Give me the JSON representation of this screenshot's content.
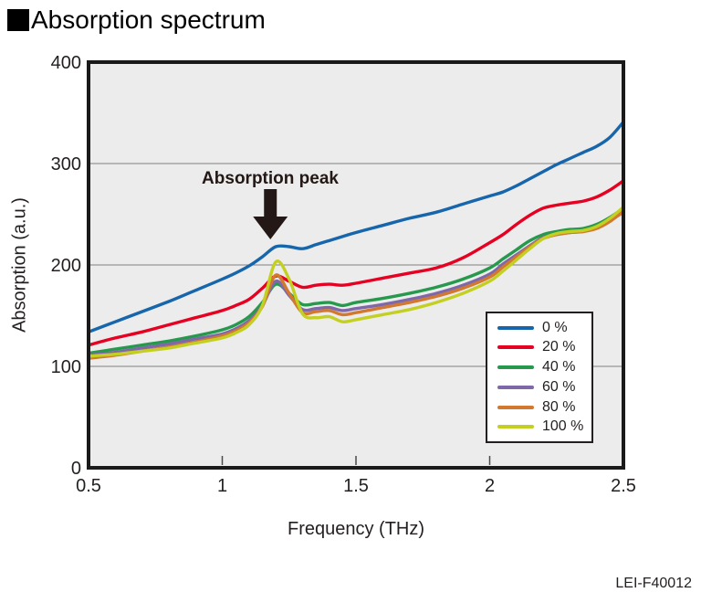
{
  "header": {
    "title": "Absorption spectrum"
  },
  "footer": {
    "code": "LEI-F40012"
  },
  "chart_data": {
    "type": "line",
    "title": "Absorption spectrum",
    "xlabel": "Frequency  (THz)",
    "ylabel": "Absorption (a.u.)",
    "xlim": [
      0.5,
      2.5
    ],
    "ylim": [
      0,
      400
    ],
    "x_tick_labels": [
      "0.5",
      "1",
      "1.5",
      "2",
      "2.5"
    ],
    "x_tick_values": [
      0.5,
      1,
      1.5,
      2,
      2.5
    ],
    "y_tick_labels": [
      "0",
      "100",
      "200",
      "300",
      "400"
    ],
    "y_tick_values": [
      0,
      100,
      200,
      300,
      400
    ],
    "grid": "horizontal-only",
    "plot_background": "#ececec",
    "grid_color": "#7f7f7f",
    "border_color": "#1a1a1a",
    "legend_position": "inside-lower-right",
    "annotation": {
      "text": "Absorption peak",
      "arrow_points_to_x": 1.18,
      "arrow_color": "#231815"
    },
    "x": [
      0.5,
      0.6,
      0.7,
      0.8,
      0.9,
      1.0,
      1.05,
      1.1,
      1.15,
      1.2,
      1.25,
      1.3,
      1.35,
      1.4,
      1.45,
      1.5,
      1.6,
      1.7,
      1.8,
      1.9,
      2.0,
      2.05,
      2.1,
      2.15,
      2.2,
      2.25,
      2.3,
      2.35,
      2.4,
      2.45,
      2.5
    ],
    "series": [
      {
        "name": "0 %",
        "color": "#1766ab",
        "values": [
          134,
          144,
          154,
          164,
          175,
          186,
          192,
          199,
          208,
          218,
          218,
          216,
          220,
          224,
          228,
          232,
          239,
          246,
          252,
          260,
          268,
          272,
          278,
          285,
          292,
          299,
          305,
          311,
          317,
          326,
          341
        ]
      },
      {
        "name": "20 %",
        "color": "#e60021",
        "values": [
          121,
          128,
          134,
          141,
          148,
          155,
          160,
          166,
          177,
          189,
          184,
          178,
          180,
          181,
          180,
          182,
          187,
          192,
          197,
          207,
          222,
          230,
          240,
          249,
          256,
          259,
          261,
          263,
          267,
          274,
          283
        ]
      },
      {
        "name": "40 %",
        "color": "#27994d",
        "values": [
          113,
          117,
          121,
          125,
          130,
          136,
          141,
          149,
          163,
          181,
          172,
          161,
          162,
          163,
          160,
          163,
          167,
          172,
          178,
          186,
          197,
          206,
          215,
          224,
          230,
          233,
          235,
          236,
          240,
          247,
          256
        ]
      },
      {
        "name": "60 %",
        "color": "#7f68a9",
        "values": [
          111,
          114,
          118,
          122,
          127,
          132,
          137,
          145,
          160,
          184,
          170,
          156,
          157,
          158,
          155,
          157,
          161,
          166,
          172,
          180,
          191,
          201,
          210,
          219,
          227,
          230,
          232,
          233,
          237,
          244,
          252
        ]
      },
      {
        "name": "80 %",
        "color": "#d2792f",
        "values": [
          108,
          111,
          115,
          119,
          124,
          130,
          135,
          143,
          159,
          190,
          172,
          153,
          154,
          155,
          151,
          153,
          158,
          163,
          169,
          177,
          188,
          198,
          208,
          218,
          226,
          230,
          232,
          233,
          236,
          243,
          253
        ]
      },
      {
        "name": "100 %",
        "color": "#c4d021",
        "values": [
          110,
          112,
          115,
          118,
          123,
          128,
          133,
          141,
          160,
          203,
          186,
          152,
          148,
          149,
          144,
          146,
          151,
          156,
          163,
          172,
          184,
          194,
          205,
          216,
          226,
          231,
          233,
          234,
          238,
          246,
          257
        ]
      }
    ]
  }
}
